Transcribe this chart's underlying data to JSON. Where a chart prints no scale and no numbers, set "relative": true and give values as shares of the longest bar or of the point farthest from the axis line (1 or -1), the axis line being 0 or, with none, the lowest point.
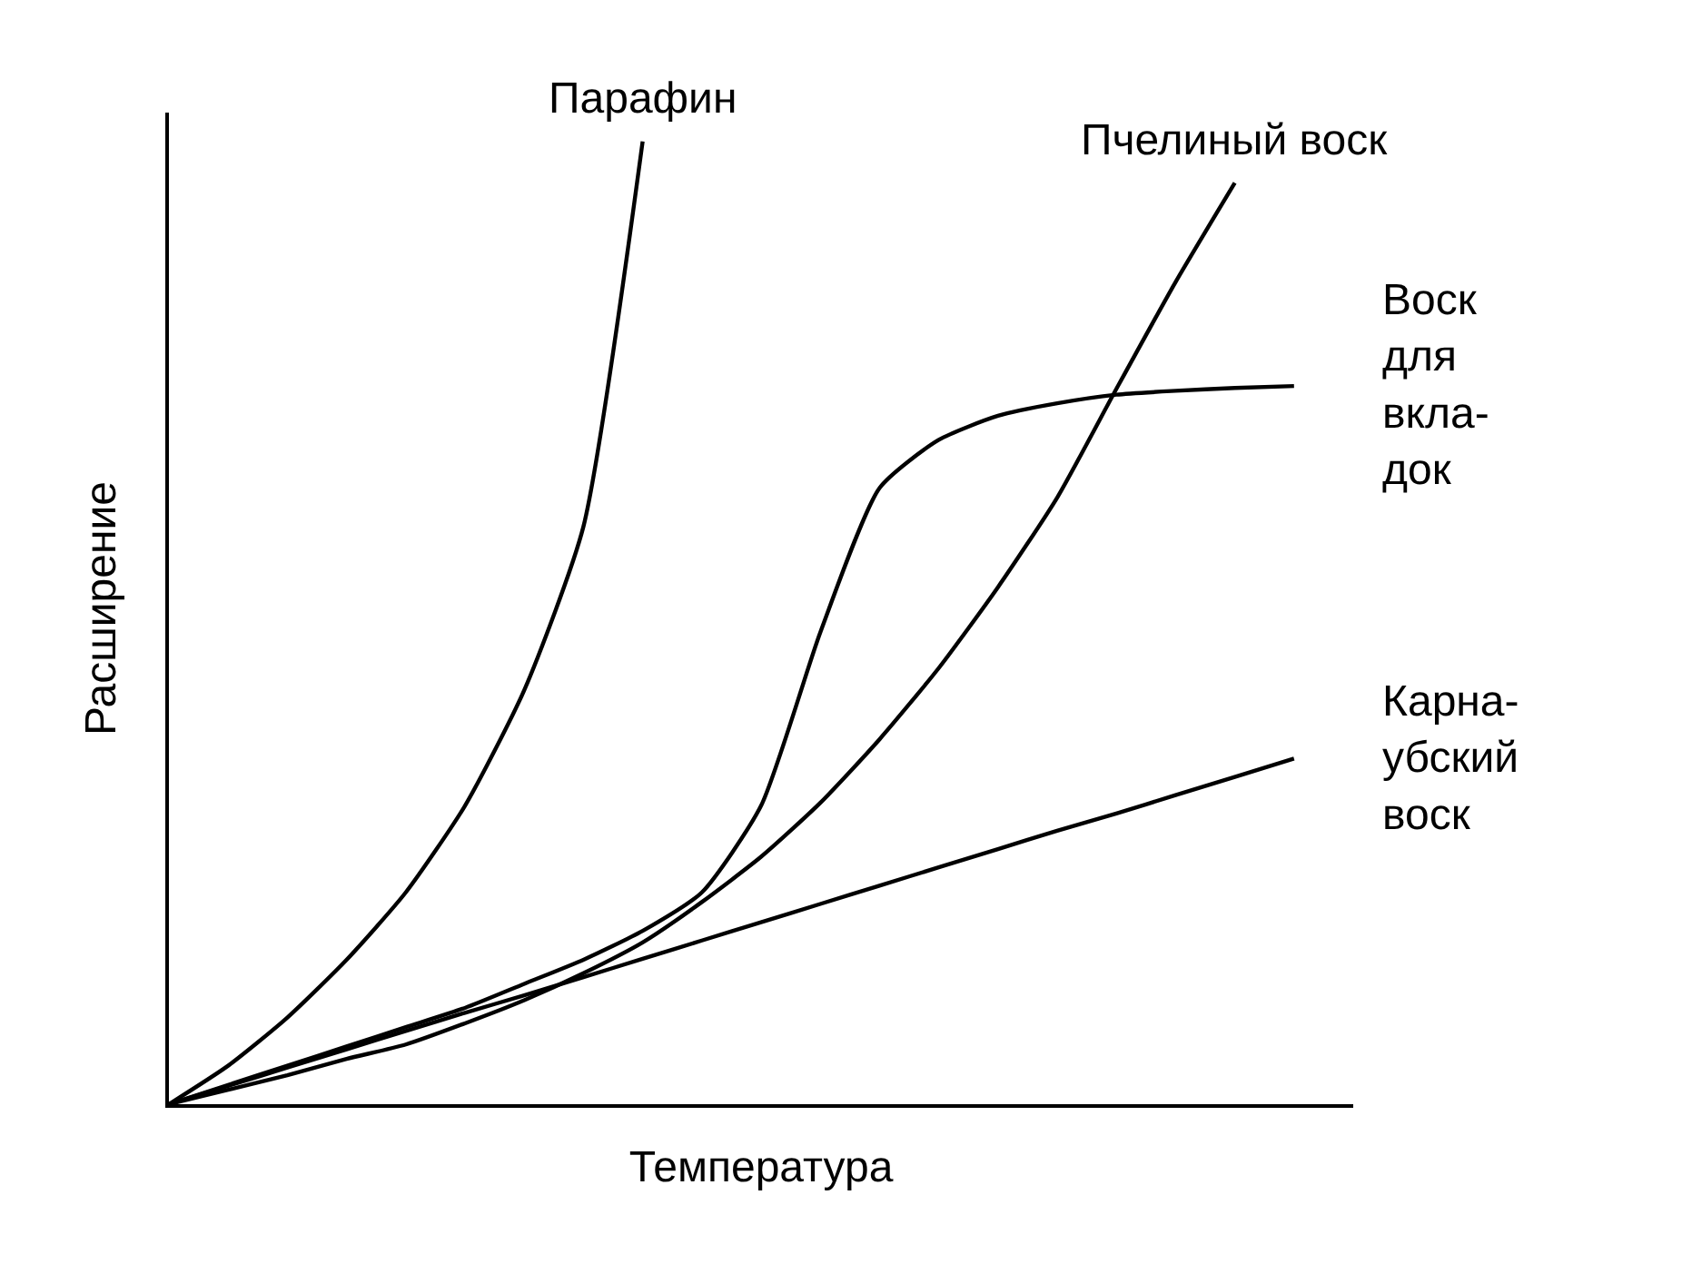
{
  "chart_data": {
    "type": "line",
    "relative": true,
    "xlabel": "Температура",
    "ylabel": "Расширение",
    "legend": false,
    "marker": "none",
    "line_style": "solid",
    "categories": [
      null,
      null,
      null,
      null,
      null,
      null,
      null,
      null,
      null,
      null,
      null,
      null,
      null,
      null,
      null,
      null,
      null,
      null,
      null,
      null,
      null
    ],
    "series": [
      {
        "name": "Парафин",
        "color": "#000000",
        "values": [
          0,
          0.04,
          0.09,
          0.15,
          0.22,
          0.31,
          0.43,
          0.6,
          1.0,
          null,
          null,
          null,
          null,
          null,
          null,
          null,
          null,
          null,
          null,
          null,
          null
        ]
      },
      {
        "name": "Пчелиный воск",
        "color": "#000000",
        "values": [
          0,
          0.015,
          0.03,
          0.047,
          0.062,
          0.084,
          0.108,
          0.136,
          0.168,
          0.21,
          0.257,
          0.313,
          0.379,
          0.453,
          0.537,
          0.63,
          0.743,
          0.854,
          0.957,
          null,
          null
        ]
      },
      {
        "name": "Воск\nдля\nвкла-\nдок",
        "color": "#000000",
        "values": [
          0,
          0.02,
          0.04,
          0.06,
          0.08,
          0.1,
          0.125,
          0.15,
          0.18,
          0.22,
          0.31,
          0.49,
          0.64,
          0.69,
          0.715,
          0.728,
          0.737,
          0.741,
          0.744,
          0.746,
          null
        ]
      },
      {
        "name": "Карна-\nубский\nвоск",
        "color": "#000000",
        "values": [
          0,
          0.019,
          0.038,
          0.057,
          0.076,
          0.095,
          0.113,
          0.132,
          0.151,
          0.17,
          0.189,
          0.208,
          0.227,
          0.246,
          0.265,
          0.284,
          0.302,
          0.321,
          0.34,
          0.359,
          null
        ]
      }
    ]
  }
}
